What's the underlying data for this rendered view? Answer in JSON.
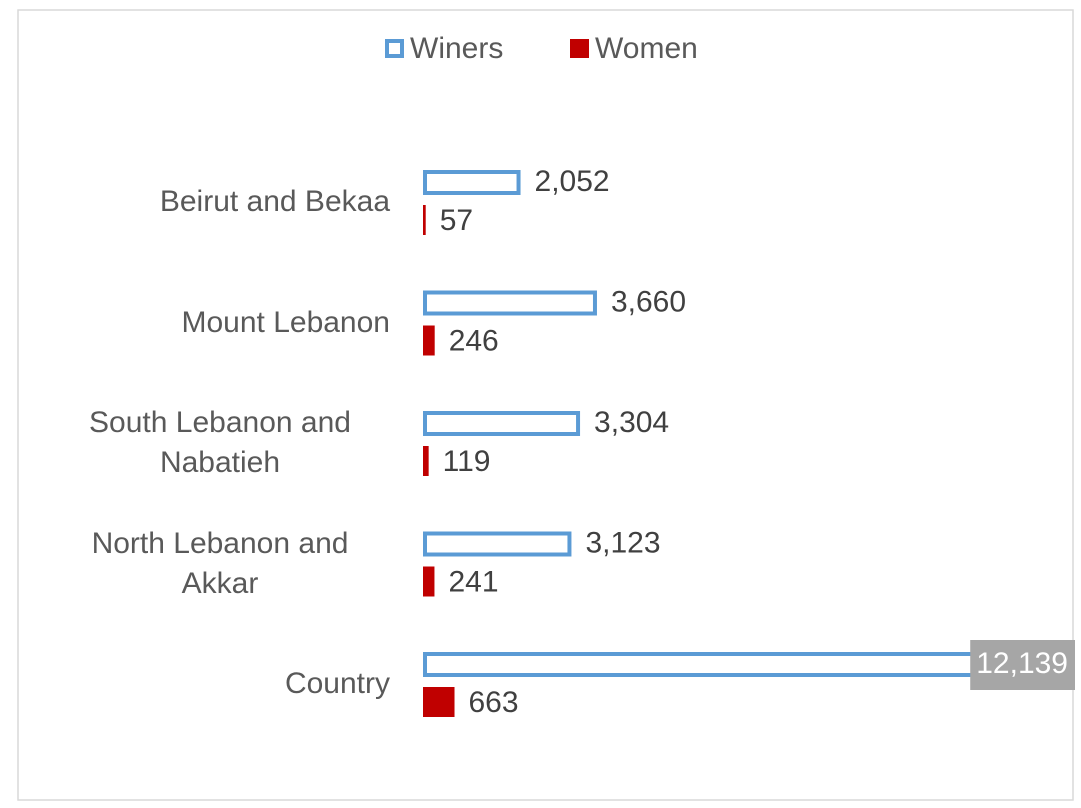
{
  "chart_data": {
    "type": "bar",
    "orientation": "horizontal",
    "categories": [
      "Beirut and Bekaa",
      "Mount Lebanon",
      "South Lebanon and Nabatieh",
      "North Lebanon and Akkar",
      "Country"
    ],
    "series": [
      {
        "name": "Winers",
        "color": "#5b9bd5",
        "values": [
          2052,
          3660,
          3304,
          3123,
          12139
        ],
        "value_labels": [
          "2,052",
          "3,660",
          "3,304",
          "3,123",
          "12,139"
        ]
      },
      {
        "name": "Women",
        "color": "#c00000",
        "values": [
          57,
          246,
          119,
          241,
          663
        ],
        "value_labels": [
          "57",
          "246",
          "119",
          "241",
          "663"
        ]
      }
    ],
    "legend": "top"
  }
}
